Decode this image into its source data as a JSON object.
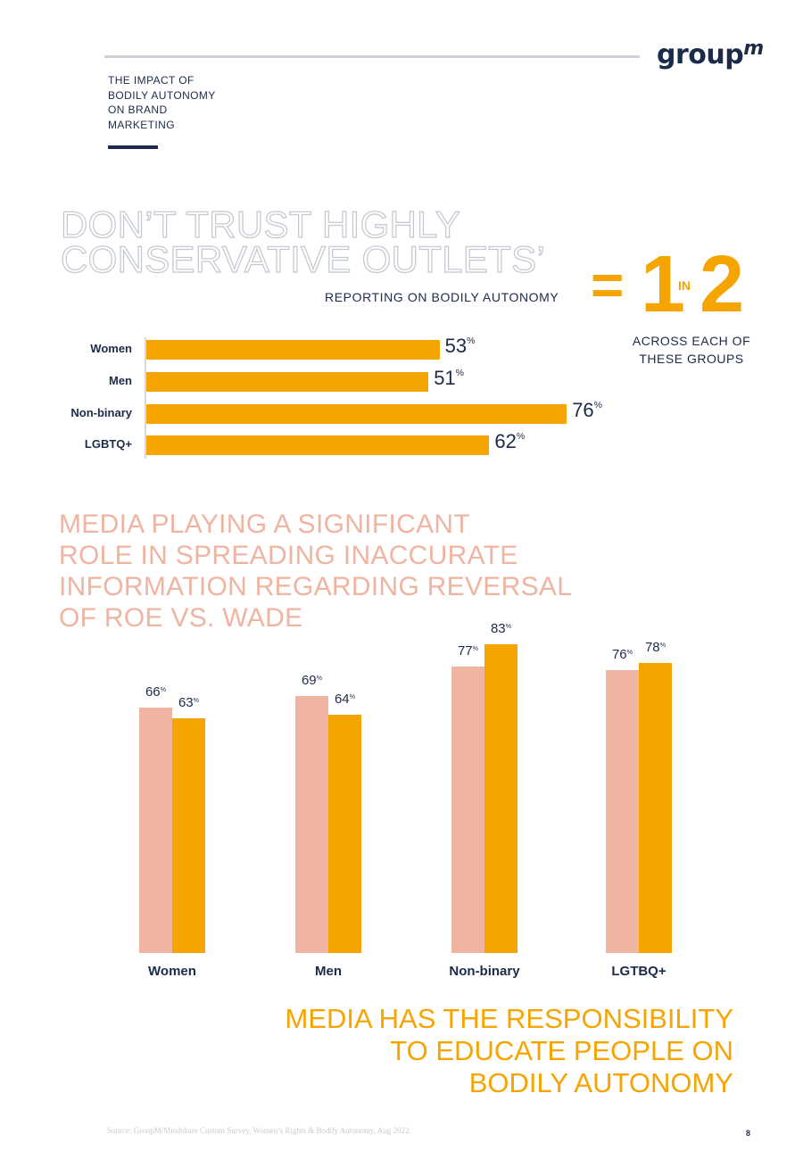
{
  "header": {
    "report_title_lines": [
      "THE IMPACT OF",
      "BODILY AUTONOMY",
      "ON BRAND",
      "MARKETING"
    ],
    "logo_text": "group",
    "logo_superscript": "m"
  },
  "section1": {
    "headline_lines": [
      "DON’T TRUST HIGHLY",
      "CONSERVATIVE OUTLETS’"
    ],
    "subheadline": "REPORTING ON BODILY AUTONOMY",
    "ratio": {
      "equals": "=",
      "numerator": "1",
      "connector": "IN",
      "denominator": "2"
    },
    "ratio_caption": "ACROSS EACH OF THESE GROUPS"
  },
  "section2": {
    "headline_lines": [
      "MEDIA PLAYING A SIGNIFICANT",
      "ROLE IN SPREADING INACCURATE",
      "INFORMATION REGARDING REVERSAL",
      "OF ROE VS. WADE"
    ]
  },
  "closing_lines": [
    "MEDIA HAS THE RESPONSIBILITY",
    "TO EDUCATE PEOPLE ON",
    "BODILY AUTONOMY"
  ],
  "footer": {
    "source": "Source: GroupM/Mindshare Custom Survey, Women’s Rights & Bodily Autonomy, Aug 2022.",
    "page_number": "8"
  },
  "colors": {
    "navy": "#1c2b4a",
    "orange": "#f5a400",
    "peach": "#efb4a2",
    "grey": "#c3c7cf"
  },
  "chart_data": [
    {
      "type": "bar",
      "orientation": "horizontal",
      "categories": [
        "Women",
        "Men",
        "Non-binary",
        "LGBTQ+"
      ],
      "values": [
        53,
        51,
        76,
        62
      ],
      "value_suffix": "%",
      "xlim": [
        0,
        100
      ]
    },
    {
      "type": "bar",
      "orientation": "vertical",
      "categories": [
        "Women",
        "Men",
        "Non-binary",
        "LGTBQ+"
      ],
      "series": [
        {
          "values": [
            66,
            69,
            77,
            76
          ],
          "color": "#efb4a2"
        },
        {
          "values": [
            63,
            64,
            83,
            78
          ],
          "color": "#f5a400"
        }
      ],
      "value_suffix": "%",
      "ylim": [
        0,
        100
      ]
    }
  ]
}
